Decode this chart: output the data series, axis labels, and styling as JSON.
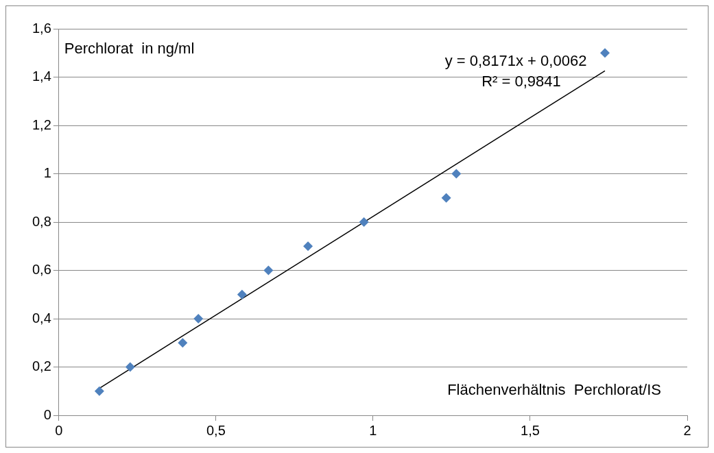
{
  "chart_data": {
    "type": "scatter",
    "xlabel": "Flächenverhältnis  Perchlorat/IS",
    "ylabel": "Perchlorat  in ng/ml",
    "annotations": [
      "y = 0,8171x + 0,0062",
      "R² = 0,9841"
    ],
    "xlim": [
      0,
      2
    ],
    "xticks": [
      0,
      {
        "value": 0.5,
        "label": "0,5"
      },
      1,
      {
        "value": 1.5,
        "label": "1,5"
      },
      2
    ],
    "ylim": [
      0,
      1.6
    ],
    "yticks": [
      0,
      {
        "value": 0.2,
        "label": "0,2"
      },
      {
        "value": 0.4,
        "label": "0,4"
      },
      {
        "value": 0.6,
        "label": "0,6"
      },
      {
        "value": 0.8,
        "label": "0,8"
      },
      1,
      {
        "value": 1.2,
        "label": "1,2"
      },
      {
        "value": 1.4,
        "label": "1,4"
      },
      {
        "value": 1.6,
        "label": "1,6"
      }
    ],
    "grid": "y",
    "legend": false,
    "series": [
      {
        "type": "scatter",
        "color": "#4f81bd",
        "marker": "diamond",
        "x": [
          0.129,
          0.227,
          0.394,
          0.444,
          0.583,
          0.667,
          0.793,
          0.971,
          1.233,
          1.265,
          1.738
        ],
        "values": [
          0.1,
          0.2,
          0.3,
          0.4,
          0.5,
          0.6,
          0.7,
          0.8,
          0.9,
          1.0,
          1.5
        ]
      },
      {
        "type": "line",
        "color": "#000000",
        "x": [
          0.129,
          1.738
        ],
        "values": [
          0.112,
          1.426
        ],
        "marker": "none",
        "line_style": "solid"
      }
    ]
  }
}
